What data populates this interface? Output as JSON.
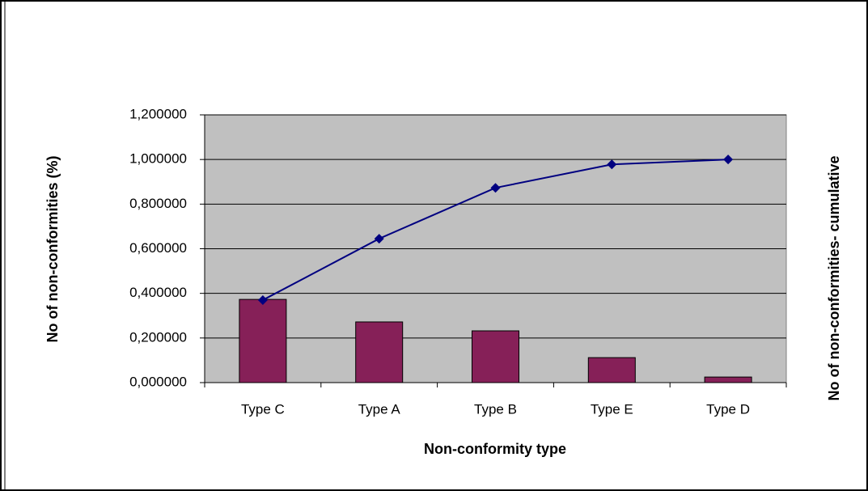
{
  "chart_data": {
    "type": "bar",
    "categories": [
      "Type C",
      "Type A",
      "Type B",
      "Type E",
      "Type D"
    ],
    "series": [
      {
        "type": "bar",
        "color": "#862058",
        "values": [
          0.373,
          0.272,
          0.232,
          0.112,
          0.025
        ]
      },
      {
        "type": "line",
        "color": "#000080",
        "axis": "y2",
        "values": [
          0.37,
          0.645,
          0.873,
          0.978,
          1.0
        ]
      }
    ],
    "x_label": "Non-conformity type",
    "y_label": "No of non-conformities (%)",
    "y2_label": "No of non-conformities- cumulative",
    "ylim": [
      0,
      1.2
    ],
    "yticks": [
      {
        "value": 0,
        "label": "0,000000"
      },
      {
        "value": 0.2,
        "label": "0,200000"
      },
      {
        "value": 0.4,
        "label": "0,400000"
      },
      {
        "value": 0.6,
        "label": "0,600000"
      },
      {
        "value": 0.8,
        "label": "0,800000"
      },
      {
        "value": 1.0,
        "label": "1,000000"
      },
      {
        "value": 1.2,
        "label": "1,200000"
      }
    ],
    "y2lim": [
      0,
      1.2
    ],
    "grid": true,
    "plot_background": "#c0c0c0"
  }
}
